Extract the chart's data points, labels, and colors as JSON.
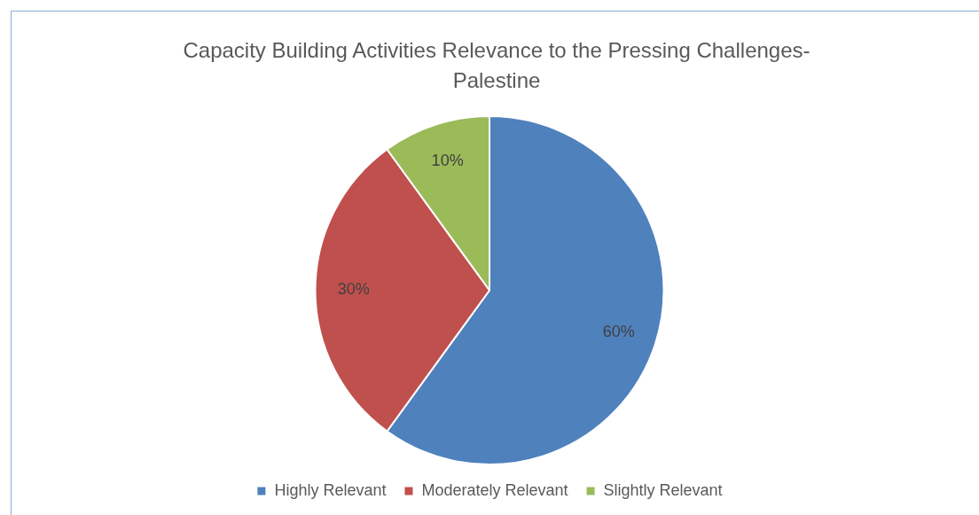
{
  "chart_data": {
    "type": "pie",
    "title": "Capacity Building Activities Relevance to the Pressing Challenges-Palestine",
    "categories": [
      "Highly Relevant",
      "Moderately Relevant",
      "Slightly Relevant"
    ],
    "values": [
      60,
      30,
      10
    ],
    "colors": [
      "#4f81bd",
      "#c0504d",
      "#9bbb59"
    ],
    "value_labels": [
      "60%",
      "30%",
      "10%"
    ],
    "legend": "bottom"
  }
}
